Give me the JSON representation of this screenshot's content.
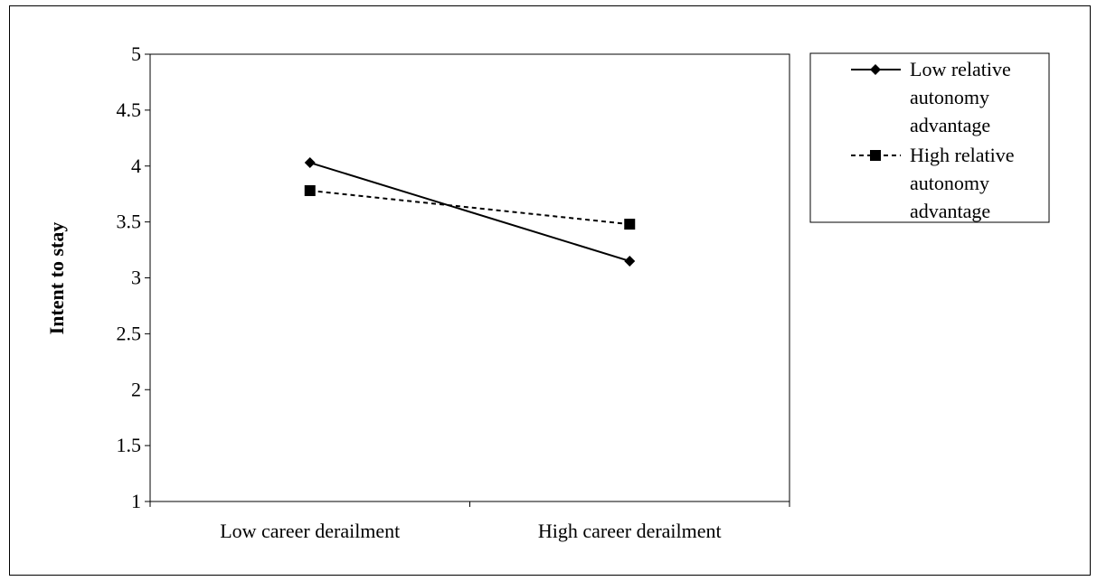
{
  "chart_data": {
    "type": "line",
    "title": "",
    "xlabel": "",
    "ylabel": "Intent to stay",
    "categories": [
      "Low career derailment",
      "High career derailment"
    ],
    "ylim": [
      1,
      5
    ],
    "yticks": [
      "1",
      "1.5",
      "2",
      "2.5",
      "3",
      "3.5",
      "4",
      "4.5",
      "5"
    ],
    "grid": false,
    "legend_position": "right",
    "series": [
      {
        "name_lines": [
          "Low relative",
          "autonomy",
          "advantage"
        ],
        "values": [
          4.03,
          3.15
        ],
        "line_style": "solid",
        "marker": "diamond",
        "color": "#000000"
      },
      {
        "name_lines": [
          "High relative",
          "autonomy",
          "advantage"
        ],
        "values": [
          3.78,
          3.48
        ],
        "line_style": "dashed",
        "marker": "square",
        "color": "#000000"
      }
    ]
  }
}
